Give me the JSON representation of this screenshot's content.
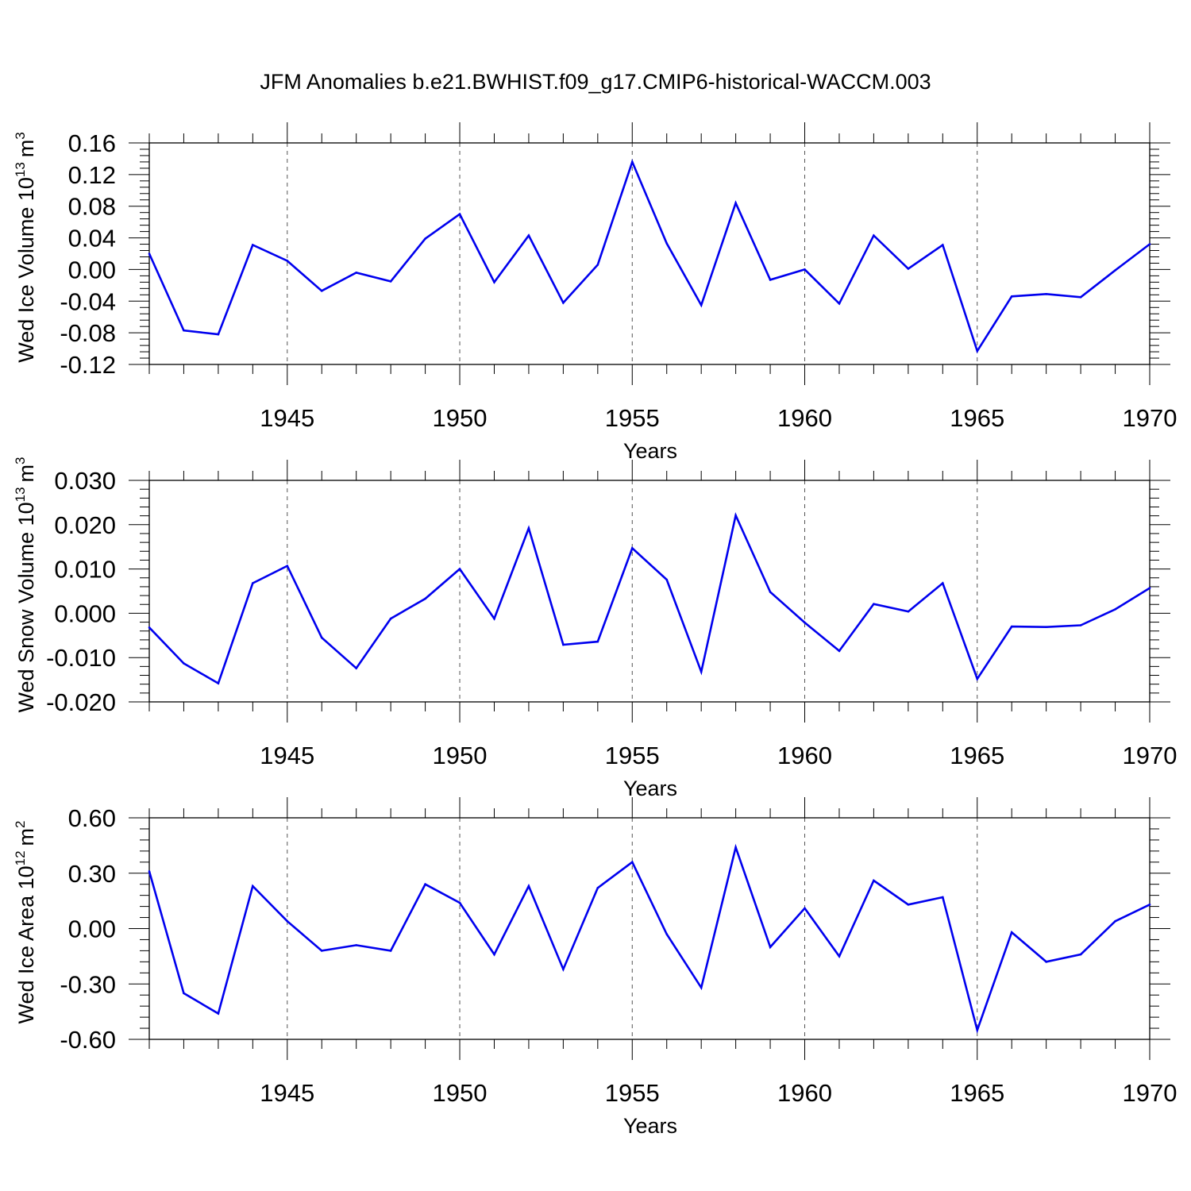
{
  "title": "JFM Anomalies b.e21.BWHIST.f09_g17.CMIP6-historical-WACCM.003",
  "colors": {
    "line": "#0000ee",
    "axis": "#000000",
    "grid": "#555555"
  },
  "chart_data": [
    {
      "type": "line",
      "ylabel": {
        "text": "Wed Ice Volume 10",
        "exp": "13",
        "unit": "m",
        "unit_exp": "3"
      },
      "xlabel": "Years",
      "xlim": [
        1941,
        1970
      ],
      "ylim": [
        -0.12,
        0.16
      ],
      "yticks": [
        "0.16",
        "0.12",
        "0.08",
        "0.04",
        "0.00",
        "-0.04",
        "-0.08",
        "-0.12"
      ],
      "ytick_values": [
        0.16,
        0.12,
        0.08,
        0.04,
        0.0,
        -0.04,
        -0.08,
        -0.12
      ],
      "xticks": [
        "1945",
        "1950",
        "1955",
        "1960",
        "1965",
        "1970"
      ],
      "xtick_values": [
        1945,
        1950,
        1955,
        1960,
        1965,
        1970
      ],
      "grid": "vertical dashed at labeled years",
      "x": [
        1941,
        1942,
        1943,
        1944,
        1945,
        1946,
        1947,
        1948,
        1949,
        1950,
        1951,
        1952,
        1953,
        1954,
        1955,
        1956,
        1957,
        1958,
        1959,
        1960,
        1961,
        1962,
        1963,
        1964,
        1965,
        1966,
        1967,
        1968,
        1969,
        1970
      ],
      "values": [
        0.02,
        -0.077,
        -0.082,
        0.031,
        0.011,
        -0.027,
        -0.004,
        -0.015,
        0.039,
        0.07,
        -0.016,
        0.043,
        -0.042,
        0.006,
        0.136,
        0.033,
        -0.045,
        0.084,
        -0.013,
        0.0,
        -0.043,
        0.043,
        0.001,
        0.031,
        -0.103,
        -0.034,
        -0.031,
        -0.035,
        -0.001,
        0.032
      ]
    },
    {
      "type": "line",
      "ylabel": {
        "text": "Wed Snow Volume 10",
        "exp": "13",
        "unit": "m",
        "unit_exp": "3"
      },
      "xlabel": "Years",
      "xlim": [
        1941,
        1970
      ],
      "ylim": [
        -0.02,
        0.03
      ],
      "yticks": [
        "0.030",
        "0.020",
        "0.010",
        "0.000",
        "-0.010",
        "-0.020"
      ],
      "ytick_values": [
        0.03,
        0.02,
        0.01,
        0.0,
        -0.01,
        -0.02
      ],
      "xticks": [
        "1945",
        "1950",
        "1955",
        "1960",
        "1965",
        "1970"
      ],
      "xtick_values": [
        1945,
        1950,
        1955,
        1960,
        1965,
        1970
      ],
      "grid": "vertical dashed at labeled years",
      "x": [
        1941,
        1942,
        1943,
        1944,
        1945,
        1946,
        1947,
        1948,
        1949,
        1950,
        1951,
        1952,
        1953,
        1954,
        1955,
        1956,
        1957,
        1958,
        1959,
        1960,
        1961,
        1962,
        1963,
        1964,
        1965,
        1966,
        1967,
        1968,
        1969,
        1970
      ],
      "values": [
        -0.0032,
        -0.0113,
        -0.0158,
        0.0068,
        0.0107,
        -0.0055,
        -0.0124,
        -0.0012,
        0.0033,
        0.01,
        -0.0012,
        0.0192,
        -0.0071,
        -0.0064,
        0.0147,
        0.0076,
        -0.0132,
        0.0221,
        0.0048,
        -0.0021,
        -0.0085,
        0.0021,
        0.0004,
        0.0068,
        -0.0148,
        -0.003,
        -0.0031,
        -0.0027,
        0.0009,
        0.0057
      ]
    },
    {
      "type": "line",
      "ylabel": {
        "text": "Wed Ice Area 10",
        "exp": "12",
        "unit": "m",
        "unit_exp": "2"
      },
      "xlabel": "Years",
      "xlim": [
        1941,
        1970
      ],
      "ylim": [
        -0.6,
        0.6
      ],
      "yticks": [
        "0.60",
        "0.30",
        "0.00",
        "-0.30",
        "-0.60"
      ],
      "ytick_values": [
        0.6,
        0.3,
        0.0,
        -0.3,
        -0.6
      ],
      "xticks": [
        "1945",
        "1950",
        "1955",
        "1960",
        "1965",
        "1970"
      ],
      "xtick_values": [
        1945,
        1950,
        1955,
        1960,
        1965,
        1970
      ],
      "grid": "vertical dashed at labeled years",
      "x": [
        1941,
        1942,
        1943,
        1944,
        1945,
        1946,
        1947,
        1948,
        1949,
        1950,
        1951,
        1952,
        1953,
        1954,
        1955,
        1956,
        1957,
        1958,
        1959,
        1960,
        1961,
        1962,
        1963,
        1964,
        1965,
        1966,
        1967,
        1968,
        1969,
        1970
      ],
      "values": [
        0.31,
        -0.35,
        -0.46,
        0.23,
        0.04,
        -0.12,
        -0.09,
        -0.12,
        0.24,
        0.14,
        -0.14,
        0.23,
        -0.22,
        0.22,
        0.36,
        -0.03,
        -0.32,
        0.44,
        -0.1,
        0.11,
        -0.15,
        0.26,
        0.13,
        0.17,
        -0.55,
        -0.02,
        -0.18,
        -0.14,
        0.04,
        0.13
      ]
    }
  ]
}
